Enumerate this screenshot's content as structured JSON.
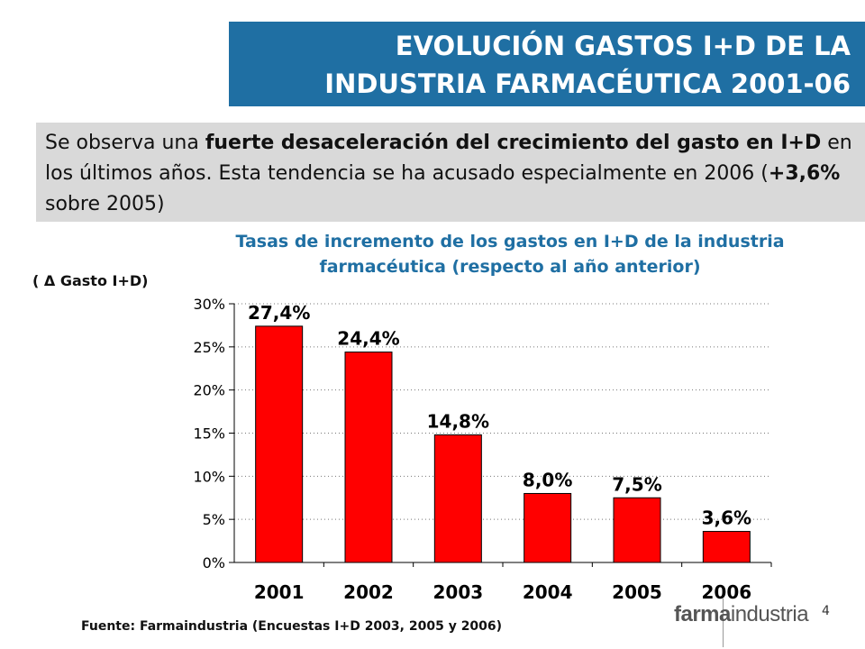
{
  "title": {
    "line1": "EVOLUCIÓN GASTOS I+D DE LA",
    "line2": "INDUSTRIA FARMACÉUTICA 2001-06"
  },
  "summary": {
    "part1": "Se observa una ",
    "bold1": "fuerte desaceleración del crecimiento del gasto en I+D",
    "part2": " en los últimos años. Esta tendencia se ha acusado especialmente en 2006 (",
    "bold2": "+3,6%",
    "part3": " sobre 2005)"
  },
  "chart_data": {
    "type": "bar",
    "title": "Tasas de incremento de los gastos en I+D de la industria farmacéutica (respecto al año anterior)",
    "ylabel": "( Δ Gasto I+D)",
    "xlabel": "",
    "categories": [
      "2001",
      "2002",
      "2003",
      "2004",
      "2005",
      "2006"
    ],
    "values": [
      27.4,
      24.4,
      14.8,
      8.0,
      7.5,
      3.6
    ],
    "data_labels": [
      "27,4%",
      "24,4%",
      "14,8%",
      "8,0%",
      "7,5%",
      "3,6%"
    ],
    "yticks": [
      "0%",
      "5%",
      "10%",
      "15%",
      "20%",
      "25%",
      "30%"
    ],
    "ylim": [
      0,
      30
    ],
    "grid": true,
    "legend": "none",
    "bar_color": "#ff0000"
  },
  "source": "Fuente: Farmaindustria (Encuestas I+D 2003, 2005 y 2006)",
  "page_number": "4",
  "logo": {
    "bold": "farma",
    "regular": "industria"
  }
}
